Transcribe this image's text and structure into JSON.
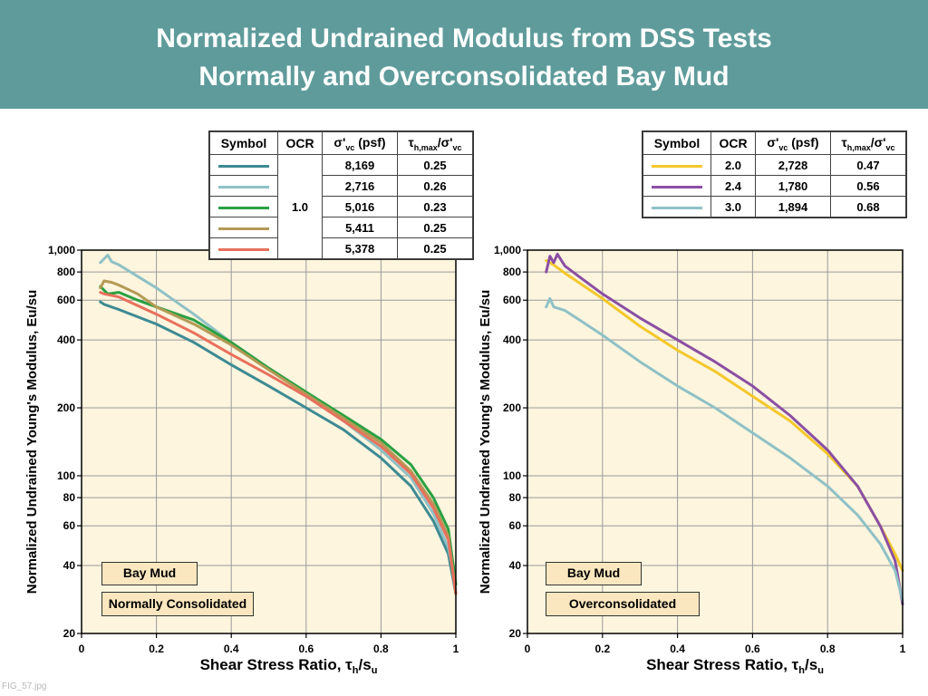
{
  "header": {
    "title_line1": "Normalized Undrained Modulus from DSS Tests",
    "title_line2": "Normally and Overconsolidated Bay Mud"
  },
  "file_label": "FIG_57.jpg",
  "colors": {
    "header_bg": "#5f9b9b",
    "plot_bg": "#fdf5de",
    "note_bg": "#fbe7bf",
    "teal": "#3d8a93",
    "light_blue": "#8fc1c6",
    "green": "#2aa042",
    "tan": "#b39a55",
    "salmon": "#e8715c",
    "yellow": "#f4c82a",
    "purple": "#8a4fa3"
  },
  "chart_data": [
    {
      "type": "line",
      "xlabel_main": "Shear Stress Ratio, τ",
      "xlabel_sub1": "h",
      "xlabel_mid": "/s",
      "xlabel_sub2": "u",
      "ylabel": "Normalized Undrained Young's Modulus, Eu/su",
      "xlim": [
        0,
        1
      ],
      "ylim": [
        20,
        1000
      ],
      "yscale": "log",
      "grid": true,
      "x_ticks": [
        "0",
        "0.2",
        "0.4",
        "0.6",
        "0.8",
        "1"
      ],
      "y_ticks": [
        "20",
        "40",
        "60",
        "80",
        "100",
        "200",
        "400",
        "600",
        "800",
        "1,000"
      ],
      "notes": [
        "Bay Mud",
        "Normally Consolidated"
      ],
      "legend": {
        "headers": [
          "Symbol",
          "OCR",
          "σ'vc (psf)",
          "τh,max/σ'vc"
        ],
        "ocr_shared": "1.0",
        "rows": [
          {
            "color": "#3d8a93",
            "sigma": "8,169",
            "tau": "0.25"
          },
          {
            "color": "#8fc1c6",
            "sigma": "2,716",
            "tau": "0.26"
          },
          {
            "color": "#2aa042",
            "sigma": "5,016",
            "tau": "0.23"
          },
          {
            "color": "#b39a55",
            "sigma": "5,411",
            "tau": "0.25"
          },
          {
            "color": "#e8715c",
            "sigma": "5,378",
            "tau": "0.25"
          }
        ]
      },
      "series": [
        {
          "color": "#3d8a93",
          "x": [
            0.05,
            0.06,
            0.1,
            0.2,
            0.3,
            0.4,
            0.5,
            0.6,
            0.7,
            0.8,
            0.88,
            0.94,
            0.98,
            1.0
          ],
          "y": [
            590,
            575,
            545,
            470,
            390,
            310,
            250,
            200,
            160,
            120,
            90,
            63,
            45,
            30
          ]
        },
        {
          "color": "#8fc1c6",
          "x": [
            0.05,
            0.07,
            0.08,
            0.1,
            0.2,
            0.3,
            0.4,
            0.5,
            0.6,
            0.7,
            0.8,
            0.88,
            0.94,
            0.98,
            1.0
          ],
          "y": [
            880,
            950,
            890,
            860,
            680,
            520,
            390,
            300,
            230,
            175,
            130,
            98,
            68,
            48,
            33
          ]
        },
        {
          "color": "#2aa042",
          "x": [
            0.05,
            0.07,
            0.1,
            0.15,
            0.2,
            0.3,
            0.4,
            0.5,
            0.6,
            0.7,
            0.8,
            0.88,
            0.94,
            0.98,
            1.0
          ],
          "y": [
            690,
            640,
            650,
            600,
            560,
            490,
            390,
            300,
            235,
            185,
            145,
            112,
            80,
            58,
            33
          ]
        },
        {
          "color": "#b39a55",
          "x": [
            0.05,
            0.06,
            0.08,
            0.1,
            0.15,
            0.2,
            0.3,
            0.4,
            0.5,
            0.6,
            0.7,
            0.8,
            0.88,
            0.94,
            0.98,
            1.0
          ],
          "y": [
            680,
            730,
            720,
            700,
            640,
            560,
            470,
            380,
            295,
            230,
            180,
            140,
            105,
            75,
            54,
            30
          ]
        },
        {
          "color": "#e8715c",
          "x": [
            0.05,
            0.06,
            0.1,
            0.2,
            0.3,
            0.4,
            0.5,
            0.6,
            0.7,
            0.8,
            0.88,
            0.94,
            0.98,
            1.0
          ],
          "y": [
            650,
            640,
            620,
            520,
            430,
            345,
            280,
            225,
            175,
            135,
            102,
            72,
            52,
            30
          ]
        }
      ]
    },
    {
      "type": "line",
      "xlabel_main": "Shear Stress Ratio, τ",
      "xlabel_sub1": "h",
      "xlabel_mid": "/s",
      "xlabel_sub2": "u",
      "ylabel": "Normalized Undrained Young's Modulus, Eu/su",
      "xlim": [
        0,
        1
      ],
      "ylim": [
        20,
        1000
      ],
      "yscale": "log",
      "grid": true,
      "x_ticks": [
        "0",
        "0.2",
        "0.4",
        "0.6",
        "0.8",
        "1"
      ],
      "y_ticks": [
        "20",
        "40",
        "60",
        "80",
        "100",
        "200",
        "400",
        "600",
        "800",
        "1,000"
      ],
      "notes": [
        "Bay Mud",
        "Overconsolidated"
      ],
      "legend": {
        "headers": [
          "Symbol",
          "OCR",
          "σ'vc (psf)",
          "τh,max/σ'vc"
        ],
        "rows": [
          {
            "color": "#f4c82a",
            "ocr": "2.0",
            "sigma": "2,728",
            "tau": "0.47"
          },
          {
            "color": "#8a4fa3",
            "ocr": "2.4",
            "sigma": "1,780",
            "tau": "0.56"
          },
          {
            "color": "#8fc1c6",
            "ocr": "3.0",
            "sigma": "1,894",
            "tau": "0.68"
          }
        ]
      },
      "series": [
        {
          "color": "#f4c82a",
          "x": [
            0.05,
            0.07,
            0.1,
            0.2,
            0.3,
            0.4,
            0.5,
            0.6,
            0.7,
            0.8,
            0.88,
            0.94,
            0.98,
            1.0
          ],
          "y": [
            900,
            860,
            790,
            610,
            460,
            360,
            290,
            225,
            175,
            125,
            90,
            60,
            45,
            38
          ]
        },
        {
          "color": "#8a4fa3",
          "x": [
            0.05,
            0.06,
            0.07,
            0.08,
            0.1,
            0.2,
            0.3,
            0.4,
            0.5,
            0.6,
            0.7,
            0.8,
            0.88,
            0.94,
            0.98,
            1.0
          ],
          "y": [
            800,
            940,
            880,
            960,
            850,
            640,
            500,
            400,
            320,
            250,
            185,
            130,
            90,
            60,
            42,
            27
          ]
        },
        {
          "color": "#8fc1c6",
          "x": [
            0.05,
            0.06,
            0.07,
            0.1,
            0.2,
            0.3,
            0.4,
            0.5,
            0.6,
            0.7,
            0.8,
            0.88,
            0.94,
            0.98,
            1.0
          ],
          "y": [
            560,
            610,
            560,
            540,
            420,
            320,
            250,
            200,
            155,
            120,
            90,
            67,
            50,
            38,
            28
          ]
        }
      ]
    }
  ]
}
